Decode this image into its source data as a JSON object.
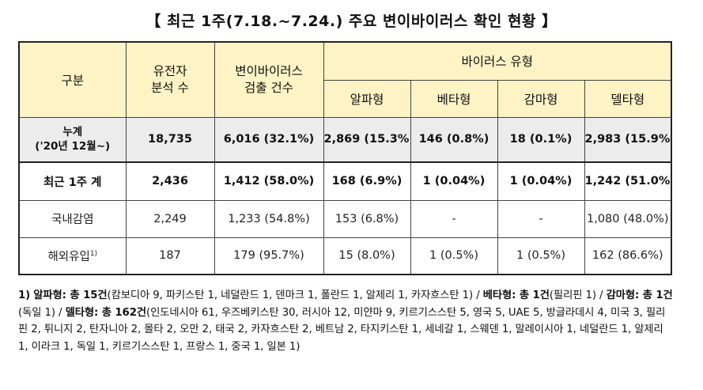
{
  "title": "【 최근 1주(7.18.~7.24.) 주요 변이바이러스 확인 현황 】",
  "header": {
    "category": "구분",
    "gene_line1": "유전자",
    "gene_line2": "분석 수",
    "variant_line1": "변이바이러스",
    "variant_line2": "검출 건수",
    "virus_type": "바이러스 유형",
    "alpha": "알파형",
    "beta": "베타형",
    "gamma": "감마형",
    "delta": "델타형"
  },
  "rows": {
    "cumulative": {
      "label_line1": "누계",
      "label_line2": "('20년 12월~)",
      "gene": "18,735",
      "variant": "6,016 (32.1%)",
      "alpha": "2,869 (15.3%)",
      "beta": "146 (0.8%)",
      "gamma": "18 (0.1%)",
      "delta": "2,983 (15.9%)"
    },
    "week_total": {
      "label": "최근 1주 계",
      "gene": "2,436",
      "variant": "1,412 (58.0%)",
      "alpha": "168 (6.9%)",
      "beta": "1 (0.04%)",
      "gamma": "1 (0.04%)",
      "delta": "1,242 (51.0%)"
    },
    "domestic": {
      "label": "국내감염",
      "gene": "2,249",
      "variant": "1,233 (54.8%)",
      "alpha": "153 (6.8%)",
      "beta": "-",
      "gamma": "-",
      "delta": "1,080 (48.0%)"
    },
    "overseas": {
      "label": "해외유입",
      "label_sup": "1)",
      "gene": "187",
      "variant": "179 (95.7%)",
      "alpha": "15 (8.0%)",
      "beta": "1 (0.5%)",
      "gamma": "1 (0.5%)",
      "delta": "162 (86.6%)"
    }
  },
  "footnote": {
    "marker": "1)",
    "alpha_label": "알파형: 총 15건",
    "alpha_detail": "(캄보디아 9, 파키스탄 1, 네덜란드 1, 덴마크 1, 폴란드 1, 알제리 1, 카자흐스탄 1) /",
    "beta_label": "베타형: 총 1건",
    "beta_detail": "(필리핀 1) /",
    "gamma_label": "감마형: 총 1건",
    "gamma_detail": "(독일 1) /",
    "delta_label": "델타형: 총 162건",
    "delta_detail": "(인도네시아 61, 우즈베키스탄 30, 러시아 12, 미얀마 9, 키르기스스탄 5, 영국 5, UAE 5, 방글라데시 4, 미국 3, 필리핀 2, 튀니지 2, 탄자니아 2, 몰타 2, 오만 2, 태국 2, 카자흐스탄 2, 베트남 2, 타지키스탄 1, 세네갈 1, 스웨덴 1, 말레이시아 1, 네덜란드 1, 알제리 1, 이라크 1, 독일 1, 키르기스스탄 1, 프랑스 1, 중국 1, 일본 1)"
  }
}
